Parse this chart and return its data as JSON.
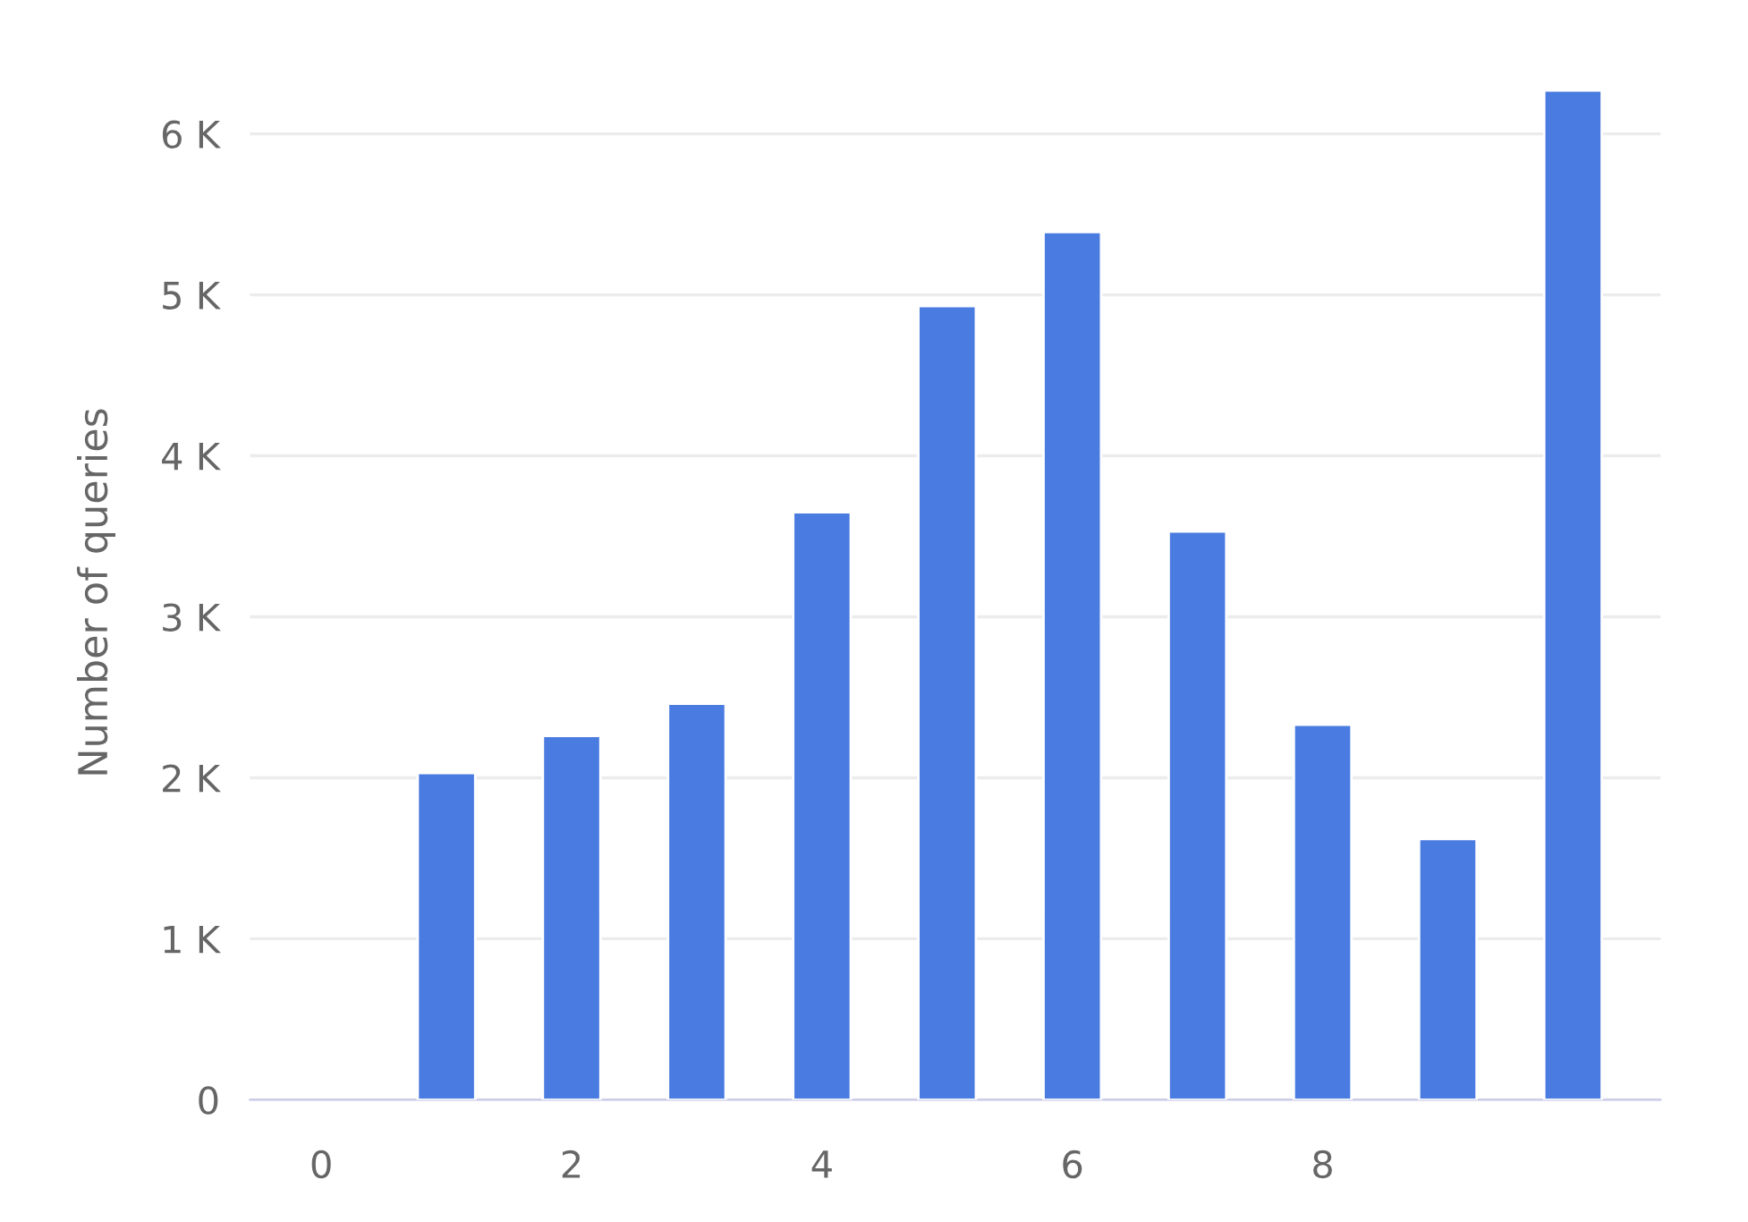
{
  "chart_data": {
    "type": "bar",
    "ylabel": "Number of queries",
    "x": [
      1,
      2,
      3,
      4,
      5,
      6,
      7,
      8,
      9,
      10
    ],
    "values": [
      2030,
      2260,
      2460,
      3650,
      4930,
      5390,
      3530,
      2330,
      1620,
      6270
    ],
    "color": "#4a7be0",
    "xlim": [
      -0.57,
      10.7
    ],
    "xticks": [
      0,
      2,
      4,
      6,
      8
    ],
    "ylim": [
      0,
      6300
    ],
    "yticks": [
      {
        "value": 0,
        "label": "0"
      },
      {
        "value": 1000,
        "label": "1 K"
      },
      {
        "value": 2000,
        "label": "2 K"
      },
      {
        "value": 3000,
        "label": "3 K"
      },
      {
        "value": 4000,
        "label": "4 K"
      },
      {
        "value": 5000,
        "label": "5 K"
      },
      {
        "value": 6000,
        "label": "6 K"
      }
    ],
    "grid": "y",
    "legend": false
  }
}
